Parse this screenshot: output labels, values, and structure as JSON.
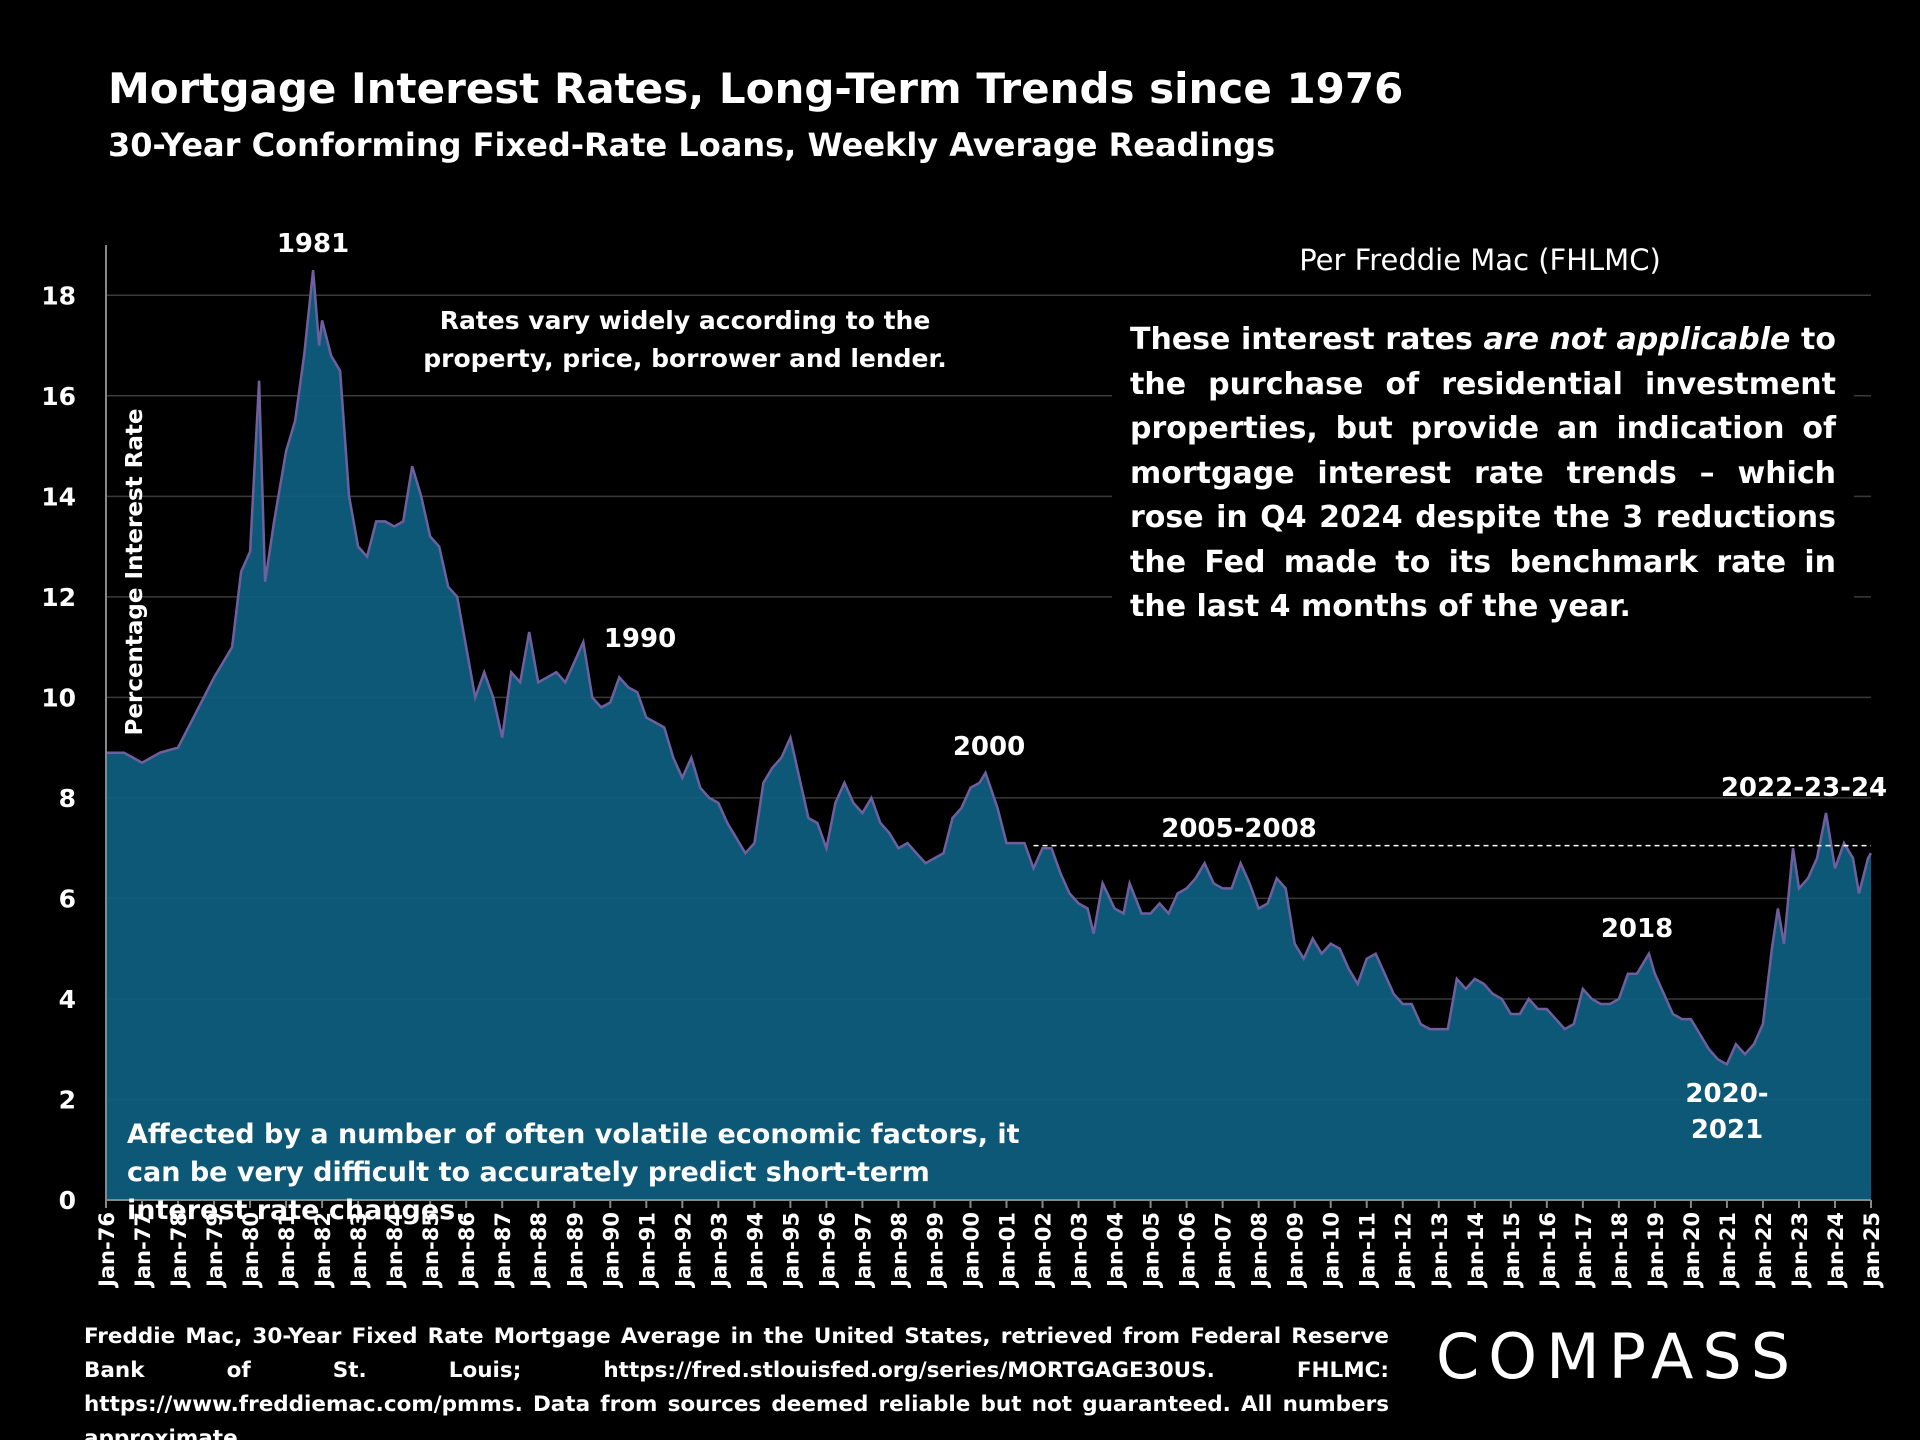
{
  "chart_data": {
    "type": "area",
    "title": "Mortgage Interest Rates, Long-Term Trends since 1976",
    "subtitle": "30-Year Conforming Fixed-Rate Loans, Weekly Average Readings",
    "y_label": "Percentage Interest  Rate",
    "source_heading": "Per Freddie Mac (FHLMC)",
    "note_before": "These interest rates ",
    "note_emphasis": "are not applicable",
    "note_after": " to the purchase of residential investment properties, but provide an indication of mortgage interest rate trends – which rose in Q4 2024 despite the 3 reductions the Fed made to its benchmark rate in the last 4 months of the year.",
    "top_note": "Rates vary widely according to the property, price, borrower and lender.",
    "bottom_note": "Affected by a number of often volatile economic factors, it can be very difficult to accurately predict short-term interest rate changes.",
    "footer": "Freddie Mac, 30-Year Fixed Rate Mortgage Average in the United States, retrieved from Federal Reserve Bank of St.  Louis;  https://fred.stlouisfed.org/series/MORTGAGE30US.  FHLMC:  https://www.freddiemac.com/pmms.  Data from sources deemed reliable but not guaranteed. All numbers approximate.",
    "logo": "COMPASS",
    "annotations": [
      "1981",
      "1990",
      "2000",
      "2005-2008",
      "2018",
      "2020-",
      "2021",
      "2022-23-24"
    ],
    "reference_line": {
      "value": 7.05,
      "from": "Oct-01",
      "to": "Jan-25"
    },
    "color": "#0f5f80",
    "line_color": "#6f5f9f",
    "ylim": [
      0,
      19
    ],
    "yticks": [
      0,
      2,
      4,
      6,
      8,
      10,
      12,
      14,
      16,
      18
    ],
    "grid": true,
    "xlim": [
      "Jan-76",
      "Jan-25"
    ],
    "xticks": [
      "Jan-76",
      "Jan-77",
      "Jan-78",
      "Jan-79",
      "Jan-80",
      "Jan-81",
      "Jan-82",
      "Jan-83",
      "Jan-84",
      "Jan-85",
      "Jan-86",
      "Jan-87",
      "Jan-88",
      "Jan-89",
      "Jan-90",
      "Jan-91",
      "Jan-92",
      "Jan-93",
      "Jan-94",
      "Jan-95",
      "Jan-96",
      "Jan-97",
      "Jan-98",
      "Jan-99",
      "Jan-00",
      "Jan-01",
      "Jan-02",
      "Jan-03",
      "Jan-04",
      "Jan-05",
      "Jan-06",
      "Jan-07",
      "Jan-08",
      "Jan-09",
      "Jan-10",
      "Jan-11",
      "Jan-12",
      "Jan-13",
      "Jan-14",
      "Jan-15",
      "Jan-16",
      "Jan-17",
      "Jan-18",
      "Jan-19",
      "Jan-20",
      "Jan-21",
      "Jan-22",
      "Jan-23",
      "Jan-24",
      "Jan-25"
    ],
    "x": [
      "Jan-76",
      "Jul-76",
      "Jan-77",
      "Jul-77",
      "Jan-78",
      "Jul-78",
      "Jan-79",
      "Jul-79",
      "Oct-79",
      "Jan-80",
      "Apr-80",
      "Jun-80",
      "Sep-80",
      "Jan-81",
      "Apr-81",
      "Jul-81",
      "Oct-81",
      "Dec-81",
      "Jan-82",
      "Apr-82",
      "Jul-82",
      "Oct-82",
      "Jan-83",
      "Apr-83",
      "Jul-83",
      "Oct-83",
      "Jan-84",
      "Apr-84",
      "Jul-84",
      "Oct-84",
      "Jan-85",
      "Apr-85",
      "Jul-85",
      "Oct-85",
      "Jan-86",
      "Apr-86",
      "Jul-86",
      "Oct-86",
      "Jan-87",
      "Apr-87",
      "Jul-87",
      "Oct-87",
      "Jan-88",
      "Apr-88",
      "Jul-88",
      "Oct-88",
      "Jan-89",
      "Apr-89",
      "Jul-89",
      "Oct-89",
      "Jan-90",
      "Apr-90",
      "Jul-90",
      "Oct-90",
      "Jan-91",
      "Apr-91",
      "Jul-91",
      "Oct-91",
      "Jan-92",
      "Apr-92",
      "Jul-92",
      "Oct-92",
      "Jan-93",
      "Apr-93",
      "Jul-93",
      "Oct-93",
      "Jan-94",
      "Apr-94",
      "Jul-94",
      "Oct-94",
      "Jan-95",
      "Apr-95",
      "Jul-95",
      "Oct-95",
      "Jan-96",
      "Apr-96",
      "Jul-96",
      "Oct-96",
      "Jan-97",
      "Apr-97",
      "Jul-97",
      "Oct-97",
      "Jan-98",
      "Apr-98",
      "Jul-98",
      "Oct-98",
      "Jan-99",
      "Apr-99",
      "Jul-99",
      "Oct-99",
      "Jan-00",
      "Apr-00",
      "Jun-00",
      "Oct-00",
      "Jan-01",
      "Apr-01",
      "Jul-01",
      "Oct-01",
      "Jan-02",
      "Apr-02",
      "Jul-02",
      "Oct-02",
      "Jan-03",
      "Apr-03",
      "Jun-03",
      "Sep-03",
      "Jan-04",
      "Apr-04",
      "Jun-04",
      "Oct-04",
      "Jan-05",
      "Apr-05",
      "Jul-05",
      "Oct-05",
      "Jan-06",
      "Apr-06",
      "Jul-06",
      "Oct-06",
      "Jan-07",
      "Apr-07",
      "Jul-07",
      "Oct-07",
      "Jan-08",
      "Apr-08",
      "Jul-08",
      "Oct-08",
      "Jan-09",
      "Apr-09",
      "Jul-09",
      "Oct-09",
      "Jan-10",
      "Apr-10",
      "Jul-10",
      "Oct-10",
      "Jan-11",
      "Apr-11",
      "Jul-11",
      "Oct-11",
      "Jan-12",
      "Apr-12",
      "Jul-12",
      "Oct-12",
      "Jan-13",
      "Apr-13",
      "Jul-13",
      "Oct-13",
      "Jan-14",
      "Apr-14",
      "Jul-14",
      "Oct-14",
      "Jan-15",
      "Apr-15",
      "Jul-15",
      "Oct-15",
      "Jan-16",
      "Apr-16",
      "Jul-16",
      "Oct-16",
      "Jan-17",
      "Apr-17",
      "Jul-17",
      "Oct-17",
      "Jan-18",
      "Apr-18",
      "Jul-18",
      "Nov-18",
      "Jan-19",
      "Apr-19",
      "Jul-19",
      "Oct-19",
      "Jan-20",
      "Apr-20",
      "Jul-20",
      "Oct-20",
      "Jan-21",
      "Apr-21",
      "Jul-21",
      "Oct-21",
      "Jan-22",
      "Apr-22",
      "Jun-22",
      "Aug-22",
      "Nov-22",
      "Jan-23",
      "Apr-23",
      "Jul-23",
      "Oct-23",
      "Jan-24",
      "Apr-24",
      "Jul-24",
      "Sep-24",
      "Dec-24",
      "Jan-25"
    ],
    "values": [
      8.9,
      8.9,
      8.7,
      8.9,
      9.0,
      9.7,
      10.4,
      11.0,
      12.5,
      12.9,
      16.3,
      12.3,
      13.5,
      14.9,
      15.5,
      16.8,
      18.5,
      17.0,
      17.5,
      16.8,
      16.5,
      14.0,
      13.0,
      12.8,
      13.5,
      13.5,
      13.4,
      13.5,
      14.6,
      14.0,
      13.2,
      13.0,
      12.2,
      12.0,
      11.0,
      10.0,
      10.5,
      10.0,
      9.2,
      10.5,
      10.3,
      11.3,
      10.3,
      10.4,
      10.5,
      10.3,
      10.7,
      11.1,
      10.0,
      9.8,
      9.9,
      10.4,
      10.2,
      10.1,
      9.6,
      9.5,
      9.4,
      8.8,
      8.4,
      8.8,
      8.2,
      8.0,
      7.9,
      7.5,
      7.2,
      6.9,
      7.1,
      8.3,
      8.6,
      8.8,
      9.2,
      8.4,
      7.6,
      7.5,
      7.0,
      7.9,
      8.3,
      7.9,
      7.7,
      8.0,
      7.5,
      7.3,
      7.0,
      7.1,
      6.9,
      6.7,
      6.8,
      6.9,
      7.6,
      7.8,
      8.2,
      8.3,
      8.5,
      7.8,
      7.1,
      7.1,
      7.1,
      6.6,
      7.0,
      7.0,
      6.5,
      6.1,
      5.9,
      5.8,
      5.3,
      6.3,
      5.8,
      5.7,
      6.3,
      5.7,
      5.7,
      5.9,
      5.7,
      6.1,
      6.2,
      6.4,
      6.7,
      6.3,
      6.2,
      6.2,
      6.7,
      6.3,
      5.8,
      5.9,
      6.4,
      6.2,
      5.1,
      4.8,
      5.2,
      4.9,
      5.1,
      5.0,
      4.6,
      4.3,
      4.8,
      4.9,
      4.5,
      4.1,
      3.9,
      3.9,
      3.5,
      3.4,
      3.4,
      3.4,
      4.4,
      4.2,
      4.4,
      4.3,
      4.1,
      4.0,
      3.7,
      3.7,
      4.0,
      3.8,
      3.8,
      3.6,
      3.4,
      3.5,
      4.2,
      4.0,
      3.9,
      3.9,
      4.0,
      4.5,
      4.5,
      4.9,
      4.5,
      4.1,
      3.7,
      3.6,
      3.6,
      3.3,
      3.0,
      2.8,
      2.7,
      3.1,
      2.9,
      3.1,
      3.5,
      5.0,
      5.8,
      5.1,
      7.0,
      6.2,
      6.4,
      6.8,
      7.7,
      6.6,
      7.1,
      6.8,
      6.1,
      6.8,
      6.9
    ]
  }
}
